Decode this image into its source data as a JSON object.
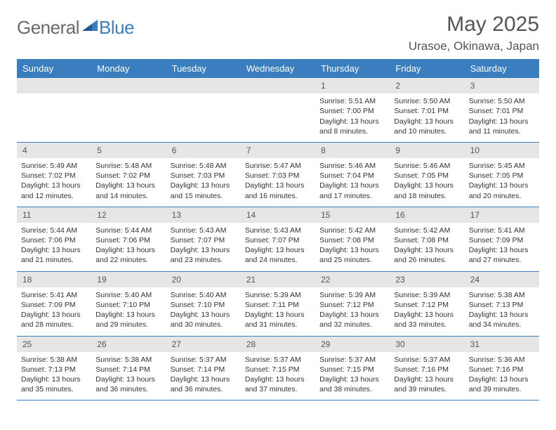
{
  "brand": {
    "part1": "General",
    "part2": "Blue"
  },
  "title": "May 2025",
  "location": "Urasoe, Okinawa, Japan",
  "header_bg": "#3a7ebf",
  "day_names": [
    "Sunday",
    "Monday",
    "Tuesday",
    "Wednesday",
    "Thursday",
    "Friday",
    "Saturday"
  ],
  "weeks": [
    {
      "dates": [
        "",
        "",
        "",
        "",
        "1",
        "2",
        "3"
      ],
      "cells": [
        null,
        null,
        null,
        null,
        {
          "sunrise": "5:51 AM",
          "sunset": "7:00 PM",
          "daylight": "13 hours and 8 minutes."
        },
        {
          "sunrise": "5:50 AM",
          "sunset": "7:01 PM",
          "daylight": "13 hours and 10 minutes."
        },
        {
          "sunrise": "5:50 AM",
          "sunset": "7:01 PM",
          "daylight": "13 hours and 11 minutes."
        }
      ]
    },
    {
      "dates": [
        "4",
        "5",
        "6",
        "7",
        "8",
        "9",
        "10"
      ],
      "cells": [
        {
          "sunrise": "5:49 AM",
          "sunset": "7:02 PM",
          "daylight": "13 hours and 12 minutes."
        },
        {
          "sunrise": "5:48 AM",
          "sunset": "7:02 PM",
          "daylight": "13 hours and 14 minutes."
        },
        {
          "sunrise": "5:48 AM",
          "sunset": "7:03 PM",
          "daylight": "13 hours and 15 minutes."
        },
        {
          "sunrise": "5:47 AM",
          "sunset": "7:03 PM",
          "daylight": "13 hours and 16 minutes."
        },
        {
          "sunrise": "5:46 AM",
          "sunset": "7:04 PM",
          "daylight": "13 hours and 17 minutes."
        },
        {
          "sunrise": "5:46 AM",
          "sunset": "7:05 PM",
          "daylight": "13 hours and 18 minutes."
        },
        {
          "sunrise": "5:45 AM",
          "sunset": "7:05 PM",
          "daylight": "13 hours and 20 minutes."
        }
      ]
    },
    {
      "dates": [
        "11",
        "12",
        "13",
        "14",
        "15",
        "16",
        "17"
      ],
      "cells": [
        {
          "sunrise": "5:44 AM",
          "sunset": "7:06 PM",
          "daylight": "13 hours and 21 minutes."
        },
        {
          "sunrise": "5:44 AM",
          "sunset": "7:06 PM",
          "daylight": "13 hours and 22 minutes."
        },
        {
          "sunrise": "5:43 AM",
          "sunset": "7:07 PM",
          "daylight": "13 hours and 23 minutes."
        },
        {
          "sunrise": "5:43 AM",
          "sunset": "7:07 PM",
          "daylight": "13 hours and 24 minutes."
        },
        {
          "sunrise": "5:42 AM",
          "sunset": "7:08 PM",
          "daylight": "13 hours and 25 minutes."
        },
        {
          "sunrise": "5:42 AM",
          "sunset": "7:08 PM",
          "daylight": "13 hours and 26 minutes."
        },
        {
          "sunrise": "5:41 AM",
          "sunset": "7:09 PM",
          "daylight": "13 hours and 27 minutes."
        }
      ]
    },
    {
      "dates": [
        "18",
        "19",
        "20",
        "21",
        "22",
        "23",
        "24"
      ],
      "cells": [
        {
          "sunrise": "5:41 AM",
          "sunset": "7:09 PM",
          "daylight": "13 hours and 28 minutes."
        },
        {
          "sunrise": "5:40 AM",
          "sunset": "7:10 PM",
          "daylight": "13 hours and 29 minutes."
        },
        {
          "sunrise": "5:40 AM",
          "sunset": "7:10 PM",
          "daylight": "13 hours and 30 minutes."
        },
        {
          "sunrise": "5:39 AM",
          "sunset": "7:11 PM",
          "daylight": "13 hours and 31 minutes."
        },
        {
          "sunrise": "5:39 AM",
          "sunset": "7:12 PM",
          "daylight": "13 hours and 32 minutes."
        },
        {
          "sunrise": "5:39 AM",
          "sunset": "7:12 PM",
          "daylight": "13 hours and 33 minutes."
        },
        {
          "sunrise": "5:38 AM",
          "sunset": "7:13 PM",
          "daylight": "13 hours and 34 minutes."
        }
      ]
    },
    {
      "dates": [
        "25",
        "26",
        "27",
        "28",
        "29",
        "30",
        "31"
      ],
      "cells": [
        {
          "sunrise": "5:38 AM",
          "sunset": "7:13 PM",
          "daylight": "13 hours and 35 minutes."
        },
        {
          "sunrise": "5:38 AM",
          "sunset": "7:14 PM",
          "daylight": "13 hours and 36 minutes."
        },
        {
          "sunrise": "5:37 AM",
          "sunset": "7:14 PM",
          "daylight": "13 hours and 36 minutes."
        },
        {
          "sunrise": "5:37 AM",
          "sunset": "7:15 PM",
          "daylight": "13 hours and 37 minutes."
        },
        {
          "sunrise": "5:37 AM",
          "sunset": "7:15 PM",
          "daylight": "13 hours and 38 minutes."
        },
        {
          "sunrise": "5:37 AM",
          "sunset": "7:16 PM",
          "daylight": "13 hours and 39 minutes."
        },
        {
          "sunrise": "5:36 AM",
          "sunset": "7:16 PM",
          "daylight": "13 hours and 39 minutes."
        }
      ]
    }
  ],
  "labels": {
    "sunrise": "Sunrise: ",
    "sunset": "Sunset: ",
    "daylight": "Daylight: "
  }
}
